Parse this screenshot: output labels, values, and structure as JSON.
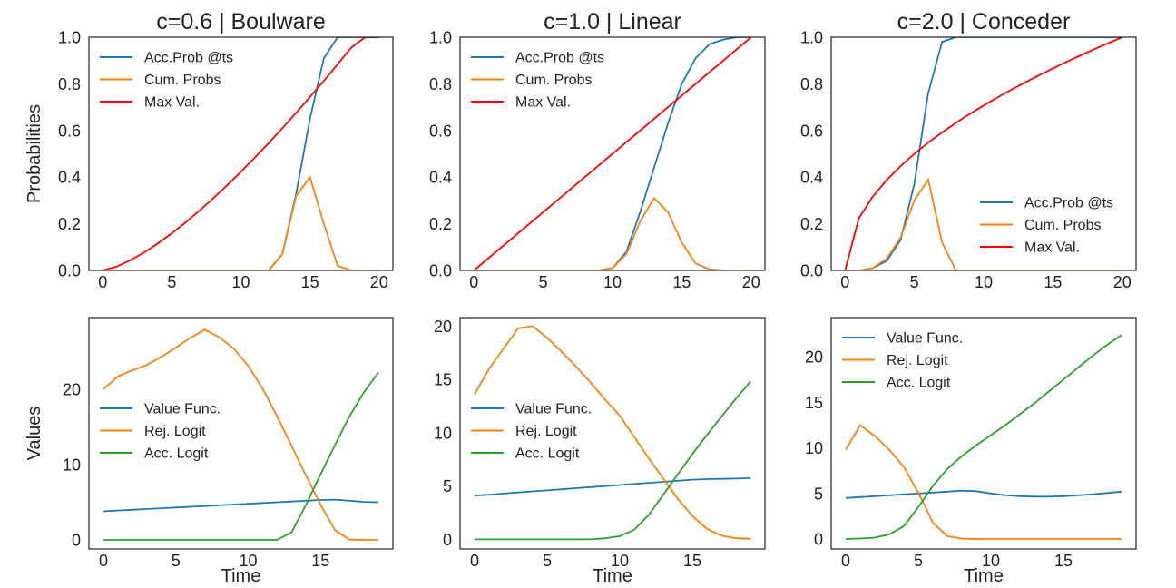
{
  "chart_data": [
    {
      "type": "line",
      "title": "c=0.6 | Boulware",
      "ylabel": "Probabilities",
      "xlabel": "",
      "xlim": [
        -1,
        21
      ],
      "ylim": [
        0,
        1.0
      ],
      "xticks": [
        0,
        5,
        10,
        15,
        20
      ],
      "yticks": [
        0.0,
        0.2,
        0.4,
        0.6,
        0.8,
        1.0
      ],
      "grid": false,
      "legend": "upper-left",
      "series": [
        {
          "name": "Acc.Prob @ts",
          "color": "#1f77b4",
          "x": [
            0,
            1,
            2,
            3,
            4,
            5,
            6,
            7,
            8,
            9,
            10,
            11,
            12,
            13,
            14,
            15,
            16,
            17,
            18,
            19,
            20
          ],
          "y": [
            0,
            0,
            0,
            0,
            0,
            0,
            0,
            0,
            0,
            0,
            0,
            0,
            0,
            0.07,
            0.33,
            0.65,
            0.91,
            1.0,
            1.0,
            1.0,
            1.0
          ]
        },
        {
          "name": "Cum. Probs",
          "color": "#ff7f0e",
          "x": [
            0,
            1,
            2,
            3,
            4,
            5,
            6,
            7,
            8,
            9,
            10,
            11,
            12,
            13,
            14,
            15,
            16,
            17,
            18,
            19,
            20
          ],
          "y": [
            0,
            0,
            0,
            0,
            0,
            0,
            0,
            0,
            0,
            0,
            0,
            0,
            0,
            0.07,
            0.32,
            0.4,
            0.2,
            0.02,
            0,
            0,
            0
          ]
        },
        {
          "name": "Max Val.",
          "color": "#ff0000",
          "x": [
            0,
            1,
            2,
            3,
            4,
            5,
            6,
            7,
            8,
            9,
            10,
            11,
            12,
            13,
            14,
            15,
            16,
            17,
            18,
            19,
            20
          ],
          "y": [
            0,
            0.0164,
            0.0436,
            0.0774,
            0.1162,
            0.1594,
            0.2062,
            0.2563,
            0.3093,
            0.3649,
            0.4229,
            0.4832,
            0.5455,
            0.6098,
            0.6758,
            0.7436,
            0.813,
            0.8839,
            0.9563,
            1.0,
            1.0
          ]
        }
      ]
    },
    {
      "type": "line",
      "title": "c=1.0 | Linear",
      "ylabel": "",
      "xlabel": "",
      "xlim": [
        -1,
        21
      ],
      "ylim": [
        0,
        1.0
      ],
      "xticks": [
        0,
        5,
        10,
        15,
        20
      ],
      "yticks": [
        0.0,
        0.2,
        0.4,
        0.6,
        0.8,
        1.0
      ],
      "grid": false,
      "legend": "upper-left",
      "series": [
        {
          "name": "Acc.Prob @ts",
          "color": "#1f77b4",
          "x": [
            0,
            1,
            2,
            3,
            4,
            5,
            6,
            7,
            8,
            9,
            10,
            11,
            12,
            13,
            14,
            15,
            16,
            17,
            18,
            19,
            20
          ],
          "y": [
            0,
            0,
            0,
            0,
            0,
            0,
            0,
            0,
            0,
            0,
            0.01,
            0.08,
            0.25,
            0.44,
            0.63,
            0.8,
            0.91,
            0.97,
            0.99,
            1.0,
            1.0
          ]
        },
        {
          "name": "Cum. Probs",
          "color": "#ff7f0e",
          "x": [
            0,
            1,
            2,
            3,
            4,
            5,
            6,
            7,
            8,
            9,
            10,
            11,
            12,
            13,
            14,
            15,
            16,
            17,
            18,
            19,
            20
          ],
          "y": [
            0,
            0,
            0,
            0,
            0,
            0,
            0,
            0,
            0,
            0,
            0.01,
            0.07,
            0.21,
            0.31,
            0.25,
            0.12,
            0.03,
            0.005,
            0,
            0,
            0
          ]
        },
        {
          "name": "Max Val.",
          "color": "#ff0000",
          "x": [
            0,
            20
          ],
          "y": [
            0,
            1.0
          ]
        }
      ]
    },
    {
      "type": "line",
      "title": "c=2.0 | Conceder",
      "ylabel": "",
      "xlabel": "",
      "xlim": [
        -1,
        21
      ],
      "ylim": [
        0,
        1.0
      ],
      "xticks": [
        0,
        5,
        10,
        15,
        20
      ],
      "yticks": [
        0.0,
        0.2,
        0.4,
        0.6,
        0.8,
        1.0
      ],
      "grid": false,
      "legend": "lower-right",
      "series": [
        {
          "name": "Acc.Prob @ts",
          "color": "#1f77b4",
          "x": [
            0,
            1,
            2,
            3,
            4,
            5,
            6,
            7,
            8,
            9,
            10,
            11,
            12,
            13,
            14,
            15,
            16,
            17,
            18,
            19,
            20
          ],
          "y": [
            0,
            0,
            0.01,
            0.04,
            0.13,
            0.37,
            0.76,
            0.98,
            1.0,
            1.0,
            1.0,
            1.0,
            1.0,
            1.0,
            1.0,
            1.0,
            1.0,
            1.0,
            1.0,
            1.0,
            1.0
          ]
        },
        {
          "name": "Cum. Probs",
          "color": "#ff7f0e",
          "x": [
            0,
            1,
            2,
            3,
            4,
            5,
            6,
            7,
            8,
            9,
            10,
            11,
            12,
            13,
            14,
            15,
            16,
            17,
            18,
            19,
            20
          ],
          "y": [
            0,
            0,
            0.01,
            0.05,
            0.14,
            0.3,
            0.39,
            0.12,
            0,
            0,
            0,
            0,
            0,
            0,
            0,
            0,
            0,
            0,
            0,
            0,
            0
          ]
        },
        {
          "name": "Max Val.",
          "color": "#ff0000",
          "x": [
            0,
            1,
            2,
            3,
            4,
            5,
            6,
            7,
            8,
            9,
            10,
            11,
            12,
            13,
            14,
            15,
            16,
            17,
            18,
            19,
            20
          ],
          "y": [
            0,
            0.2236,
            0.3162,
            0.3873,
            0.4472,
            0.5,
            0.5477,
            0.5916,
            0.6325,
            0.6708,
            0.7071,
            0.7416,
            0.7746,
            0.8062,
            0.8367,
            0.866,
            0.8944,
            0.922,
            0.9487,
            0.9747,
            1.0
          ]
        }
      ]
    },
    {
      "type": "line",
      "title": "",
      "ylabel": "Values",
      "xlabel": "Time",
      "xlim": [
        -1,
        20
      ],
      "ylim": [
        -1.2,
        29.5
      ],
      "xticks": [
        0,
        5,
        10,
        15
      ],
      "yticks": [
        0,
        10,
        20
      ],
      "grid": false,
      "legend": "center-left",
      "series": [
        {
          "name": "Value Func.",
          "color": "#1f77b4",
          "x": [
            0,
            1,
            2,
            3,
            4,
            5,
            6,
            7,
            8,
            9,
            10,
            11,
            12,
            13,
            14,
            15,
            16,
            17,
            18,
            19
          ],
          "y": [
            3.8,
            3.9,
            4.0,
            4.1,
            4.2,
            4.3,
            4.4,
            4.5,
            4.6,
            4.7,
            4.8,
            4.9,
            5.0,
            5.1,
            5.2,
            5.3,
            5.35,
            5.2,
            5.05,
            5.0
          ]
        },
        {
          "name": "Rej. Logit",
          "color": "#ff7f0e",
          "x": [
            0,
            1,
            2,
            3,
            4,
            5,
            6,
            7,
            8,
            9,
            10,
            11,
            12,
            13,
            14,
            15,
            16,
            17,
            18,
            19
          ],
          "y": [
            20.0,
            21.7,
            22.5,
            23.2,
            24.3,
            25.5,
            26.8,
            27.9,
            26.9,
            25.4,
            23.1,
            20.1,
            16.4,
            12.5,
            8.5,
            4.7,
            1.3,
            0.05,
            0,
            0
          ]
        },
        {
          "name": "Acc. Logit",
          "color": "#2ca02c",
          "x": [
            0,
            1,
            2,
            3,
            4,
            5,
            6,
            7,
            8,
            9,
            10,
            11,
            12,
            13,
            14,
            15,
            16,
            17,
            18,
            19
          ],
          "y": [
            0,
            0,
            0,
            0,
            0,
            0,
            0,
            0,
            0,
            0,
            0,
            0,
            0,
            1.0,
            4.7,
            8.7,
            12.6,
            16.4,
            19.6,
            22.2
          ]
        }
      ]
    },
    {
      "type": "line",
      "title": "",
      "ylabel": "",
      "xlabel": "Time",
      "xlim": [
        -1,
        20
      ],
      "ylim": [
        -0.9,
        20.8
      ],
      "xticks": [
        0,
        5,
        10,
        15
      ],
      "yticks": [
        0,
        5,
        10,
        15,
        20
      ],
      "grid": false,
      "legend": "center-left",
      "series": [
        {
          "name": "Value Func.",
          "color": "#1f77b4",
          "x": [
            0,
            1,
            2,
            3,
            4,
            5,
            6,
            7,
            8,
            9,
            10,
            11,
            12,
            13,
            14,
            15,
            16,
            17,
            18,
            19
          ],
          "y": [
            4.1,
            4.2,
            4.3,
            4.4,
            4.5,
            4.6,
            4.7,
            4.8,
            4.9,
            5.0,
            5.1,
            5.2,
            5.3,
            5.4,
            5.5,
            5.6,
            5.65,
            5.68,
            5.7,
            5.75
          ]
        },
        {
          "name": "Rej. Logit",
          "color": "#ff7f0e",
          "x": [
            0,
            1,
            2,
            3,
            4,
            5,
            6,
            7,
            8,
            9,
            10,
            11,
            12,
            13,
            14,
            15,
            16,
            17,
            18,
            19
          ],
          "y": [
            13.6,
            16.0,
            17.9,
            19.8,
            20.0,
            18.9,
            17.6,
            16.2,
            14.7,
            13.1,
            11.6,
            9.6,
            7.6,
            5.7,
            3.8,
            2.2,
            1.0,
            0.35,
            0.1,
            0.05
          ]
        },
        {
          "name": "Acc. Logit",
          "color": "#2ca02c",
          "x": [
            0,
            1,
            2,
            3,
            4,
            5,
            6,
            7,
            8,
            9,
            10,
            11,
            12,
            13,
            14,
            15,
            16,
            17,
            18,
            19
          ],
          "y": [
            0,
            0,
            0,
            0,
            0,
            0,
            0,
            0,
            0,
            0.1,
            0.3,
            0.9,
            2.3,
            4.2,
            6.1,
            8.0,
            9.8,
            11.5,
            13.2,
            14.8
          ]
        }
      ]
    },
    {
      "type": "line",
      "title": "",
      "ylabel": "",
      "xlabel": "Time",
      "xlim": [
        -1,
        20
      ],
      "ylim": [
        -1.1,
        24.3
      ],
      "xticks": [
        0,
        5,
        10,
        15
      ],
      "yticks": [
        0,
        5,
        10,
        15,
        20
      ],
      "grid": false,
      "legend": "upper-left",
      "series": [
        {
          "name": "Value Func.",
          "color": "#1f77b4",
          "x": [
            0,
            1,
            2,
            3,
            4,
            5,
            6,
            7,
            8,
            9,
            10,
            11,
            12,
            13,
            14,
            15,
            16,
            17,
            18,
            19
          ],
          "y": [
            4.5,
            4.6,
            4.7,
            4.8,
            4.9,
            5.0,
            5.1,
            5.2,
            5.3,
            5.25,
            5.0,
            4.8,
            4.7,
            4.65,
            4.65,
            4.7,
            4.8,
            4.9,
            5.05,
            5.2
          ]
        },
        {
          "name": "Rej. Logit",
          "color": "#ff7f0e",
          "x": [
            0,
            1,
            2,
            3,
            4,
            5,
            6,
            7,
            8,
            9,
            10,
            11,
            12,
            13,
            14,
            15,
            16,
            17,
            18,
            19
          ],
          "y": [
            9.8,
            12.5,
            11.3,
            9.8,
            7.9,
            5.1,
            1.8,
            0.3,
            0.05,
            0,
            0,
            0,
            0,
            0,
            0,
            0,
            0,
            0,
            0,
            0
          ]
        },
        {
          "name": "Acc. Logit",
          "color": "#2ca02c",
          "x": [
            0,
            1,
            2,
            3,
            4,
            5,
            6,
            7,
            8,
            9,
            10,
            11,
            12,
            13,
            14,
            15,
            16,
            17,
            18,
            19
          ],
          "y": [
            0,
            0.05,
            0.15,
            0.5,
            1.4,
            3.5,
            5.8,
            7.7,
            9.1,
            10.3,
            11.4,
            12.5,
            13.7,
            14.9,
            16.2,
            17.5,
            18.8,
            20.1,
            21.3,
            22.4
          ]
        }
      ]
    }
  ]
}
